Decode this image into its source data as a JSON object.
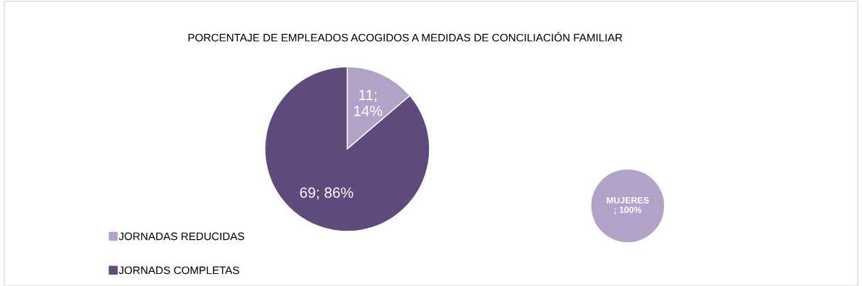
{
  "chart_data": [
    {
      "type": "pie",
      "title": "PORCENTAJE DE EMPLEADOS ACOGIDOS A MEDIDAS DE CONCILIACIÓN FAMILIAR",
      "categories": [
        "JORNADAS REDUCIDAS",
        "JORNADS COMPLETAS"
      ],
      "values": [
        11,
        69
      ],
      "colors": [
        "#b3a2c7",
        "#604a7b"
      ],
      "value_labels": [
        "11;\n14%",
        "69; 86%"
      ],
      "legend": "bottom left"
    },
    {
      "type": "pie",
      "categories": [
        "MUJERES"
      ],
      "values": [
        100
      ],
      "colors": [
        "#b3a2c7"
      ],
      "value_labels": [
        "; 100%"
      ]
    }
  ]
}
